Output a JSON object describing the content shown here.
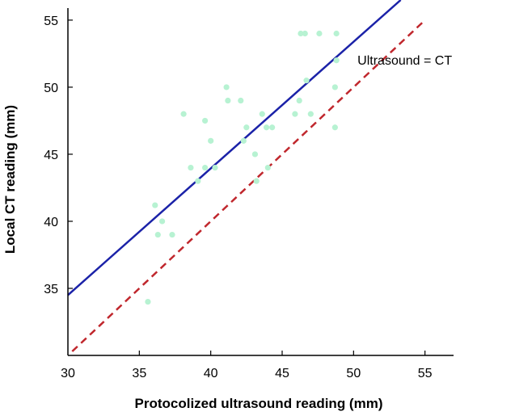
{
  "chart_data": {
    "type": "scatter",
    "title": "",
    "xlabel": "Protocolized ultrasound reading (mm)",
    "ylabel": "Local CT reading (mm)",
    "xlim": [
      30,
      57
    ],
    "ylim": [
      30,
      56.5
    ],
    "x_ticks": [
      30,
      35,
      40,
      45,
      50,
      55
    ],
    "y_ticks": [
      35,
      40,
      45,
      50,
      55
    ],
    "grid": false,
    "colors": {
      "points": "#b7f2d2",
      "fit_line": "#1b22a8",
      "identity_line": "#c0272d",
      "axis": "#000000"
    },
    "series": [
      {
        "type": "scatter",
        "points": [
          {
            "x": 35.6,
            "y": 34.0
          },
          {
            "x": 36.1,
            "y": 41.2
          },
          {
            "x": 36.3,
            "y": 39.0
          },
          {
            "x": 36.6,
            "y": 40.0
          },
          {
            "x": 37.3,
            "y": 39.0
          },
          {
            "x": 38.1,
            "y": 48.0
          },
          {
            "x": 38.6,
            "y": 44.0
          },
          {
            "x": 39.1,
            "y": 43.0
          },
          {
            "x": 39.6,
            "y": 47.5
          },
          {
            "x": 39.6,
            "y": 44.0
          },
          {
            "x": 40.0,
            "y": 46.0
          },
          {
            "x": 40.3,
            "y": 44.0
          },
          {
            "x": 41.1,
            "y": 50.0
          },
          {
            "x": 41.2,
            "y": 49.0
          },
          {
            "x": 42.1,
            "y": 49.0
          },
          {
            "x": 42.3,
            "y": 46.0
          },
          {
            "x": 42.5,
            "y": 47.0
          },
          {
            "x": 43.1,
            "y": 45.0
          },
          {
            "x": 43.2,
            "y": 43.0
          },
          {
            "x": 43.6,
            "y": 48.0
          },
          {
            "x": 43.9,
            "y": 47.0
          },
          {
            "x": 44.0,
            "y": 44.0
          },
          {
            "x": 44.3,
            "y": 47.0
          },
          {
            "x": 45.9,
            "y": 48.0
          },
          {
            "x": 46.2,
            "y": 49.0
          },
          {
            "x": 46.3,
            "y": 54.0
          },
          {
            "x": 46.6,
            "y": 54.0
          },
          {
            "x": 46.7,
            "y": 50.5
          },
          {
            "x": 47.0,
            "y": 48.0
          },
          {
            "x": 47.6,
            "y": 54.0
          },
          {
            "x": 48.7,
            "y": 50.0
          },
          {
            "x": 48.7,
            "y": 47.0
          },
          {
            "x": 48.8,
            "y": 54.0
          },
          {
            "x": 48.8,
            "y": 52.0
          }
        ]
      },
      {
        "type": "line",
        "style": "solid",
        "points": [
          {
            "x": 30.0,
            "y": 34.5
          },
          {
            "x": 53.3,
            "y": 56.5
          }
        ]
      },
      {
        "name": "Ultrasound = CT",
        "type": "line",
        "style": "dashed",
        "points": [
          {
            "x": 30.3,
            "y": 30.3
          },
          {
            "x": 54.8,
            "y": 54.8
          }
        ]
      }
    ],
    "annotations": [
      {
        "text": "Ultrasound = CT",
        "x": 53.5,
        "y": 51.5
      }
    ]
  }
}
